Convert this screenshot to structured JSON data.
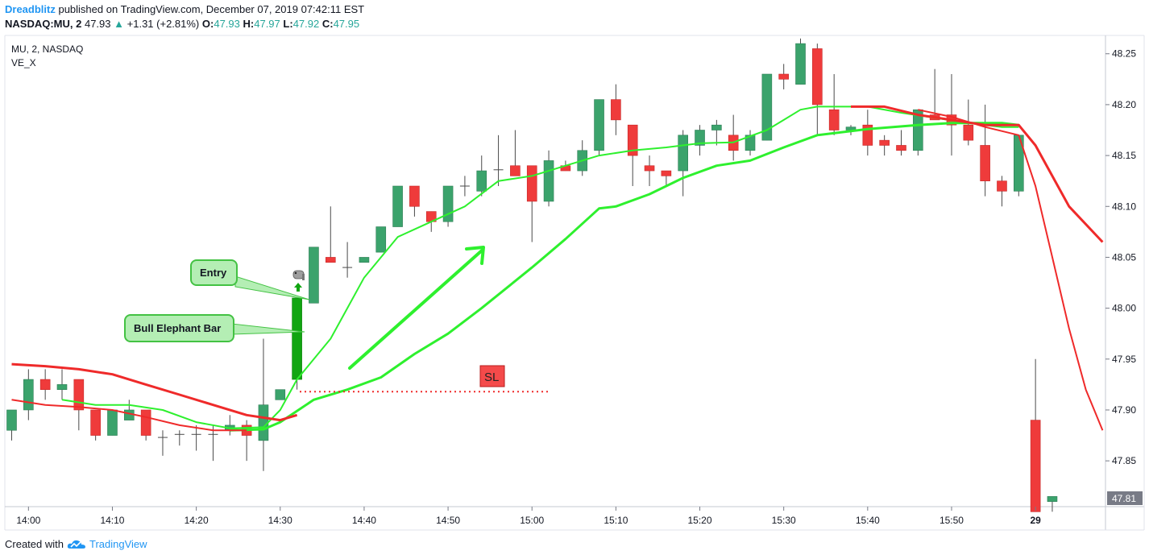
{
  "header": {
    "author": "Dreadblitz",
    "published_text": "published on TradingView.com, December 07, 2019 07:42:11 EST",
    "symbol": "NASDAQ:MU, 2",
    "last": "47.93",
    "change_arrow": "▲",
    "change": "+1.31 (+2.81%)",
    "o_label": "O:",
    "o_value": "47.93",
    "h_label": "H:",
    "h_value": "47.97",
    "l_label": "L:",
    "l_value": "47.92",
    "c_label": "C:",
    "c_value": "47.95"
  },
  "legend": {
    "symbol_line": "MU, 2, NASDAQ",
    "indicator": "VE_X"
  },
  "footer": {
    "created_with": "Created with",
    "brand": "TradingView",
    "logo_icon": "tradingview-cloud-icon"
  },
  "annotations": {
    "entry": "Entry",
    "bull_elephant_bar": "Bull Elephant Bar",
    "stop_loss": "SL",
    "elephant_icon": "elephant-icon"
  },
  "colors": {
    "bull": "#3ba36c",
    "bear": "#ef3b3b",
    "elephant_bar": "#11a511",
    "fast_ma": "#2ef02e",
    "slow_ma": "#ef2a2a",
    "callout_fill": "#b4eeb4",
    "callout_border": "#43c243",
    "sl_fill": "#f44a4a",
    "price_tag": "#787b86"
  },
  "chart_data": {
    "type": "candlestick",
    "x_tick_labels": [
      "14:00",
      "14:10",
      "14:20",
      "14:30",
      "14:40",
      "14:50",
      "15:00",
      "15:10",
      "15:20",
      "15:30",
      "15:40",
      "15:50",
      "29"
    ],
    "y_tick_labels": [
      "48.25",
      "48.20",
      "48.15",
      "48.10",
      "48.05",
      "48.00",
      "47.95",
      "47.90",
      "47.85"
    ],
    "ylim": [
      47.805,
      48.268
    ],
    "current_price_label": "47.81",
    "candles": [
      {
        "t": "13:58",
        "o": 47.88,
        "h": 47.9,
        "l": 47.87,
        "c": 47.9
      },
      {
        "t": "14:00",
        "o": 47.9,
        "h": 47.94,
        "l": 47.89,
        "c": 47.93
      },
      {
        "t": "14:02",
        "o": 47.93,
        "h": 47.94,
        "l": 47.91,
        "c": 47.92
      },
      {
        "t": "14:04",
        "o": 47.92,
        "h": 47.94,
        "l": 47.91,
        "c": 47.925
      },
      {
        "t": "14:06",
        "o": 47.93,
        "h": 47.93,
        "l": 47.88,
        "c": 47.9
      },
      {
        "t": "14:08",
        "o": 47.9,
        "h": 47.9,
        "l": 47.87,
        "c": 47.875
      },
      {
        "t": "14:10",
        "o": 47.875,
        "h": 47.9,
        "l": 47.875,
        "c": 47.9
      },
      {
        "t": "14:12",
        "o": 47.89,
        "h": 47.91,
        "l": 47.89,
        "c": 47.9
      },
      {
        "t": "14:14",
        "o": 47.9,
        "h": 47.9,
        "l": 47.87,
        "c": 47.875
      },
      {
        "t": "14:16",
        "o": 47.873,
        "h": 47.88,
        "l": 47.855,
        "c": 47.873
      },
      {
        "t": "14:18",
        "o": 47.876,
        "h": 47.88,
        "l": 47.865,
        "c": 47.876
      },
      {
        "t": "14:20",
        "o": 47.876,
        "h": 47.885,
        "l": 47.86,
        "c": 47.876
      },
      {
        "t": "14:22",
        "o": 47.876,
        "h": 47.885,
        "l": 47.85,
        "c": 47.876
      },
      {
        "t": "14:24",
        "o": 47.88,
        "h": 47.895,
        "l": 47.875,
        "c": 47.885
      },
      {
        "t": "14:26",
        "o": 47.885,
        "h": 47.89,
        "l": 47.85,
        "c": 47.875
      },
      {
        "t": "14:28",
        "o": 47.87,
        "h": 47.97,
        "l": 47.84,
        "c": 47.905
      },
      {
        "t": "14:30",
        "o": 47.91,
        "h": 47.92,
        "l": 47.91,
        "c": 47.92
      },
      {
        "t": "14:32",
        "o": 47.93,
        "h": 48.01,
        "l": 47.92,
        "c": 48.01,
        "elephant": true
      },
      {
        "t": "14:34",
        "o": 48.005,
        "h": 48.06,
        "l": 48.005,
        "c": 48.06
      },
      {
        "t": "14:36",
        "o": 48.05,
        "h": 48.1,
        "l": 48.045,
        "c": 48.045
      },
      {
        "t": "14:38",
        "o": 48.04,
        "h": 48.065,
        "l": 48.03,
        "c": 48.04
      },
      {
        "t": "14:40",
        "o": 48.045,
        "h": 48.05,
        "l": 48.045,
        "c": 48.05
      },
      {
        "t": "14:42",
        "o": 48.055,
        "h": 48.08,
        "l": 48.055,
        "c": 48.08
      },
      {
        "t": "14:44",
        "o": 48.08,
        "h": 48.12,
        "l": 48.08,
        "c": 48.12
      },
      {
        "t": "14:46",
        "o": 48.12,
        "h": 48.12,
        "l": 48.09,
        "c": 48.1
      },
      {
        "t": "14:48",
        "o": 48.095,
        "h": 48.095,
        "l": 48.075,
        "c": 48.085
      },
      {
        "t": "14:50",
        "o": 48.085,
        "h": 48.12,
        "l": 48.08,
        "c": 48.12
      },
      {
        "t": "14:52",
        "o": 48.12,
        "h": 48.13,
        "l": 48.11,
        "c": 48.12
      },
      {
        "t": "14:54",
        "o": 48.115,
        "h": 48.15,
        "l": 48.11,
        "c": 48.135
      },
      {
        "t": "14:56",
        "o": 48.136,
        "h": 48.17,
        "l": 48.12,
        "c": 48.136
      },
      {
        "t": "14:58",
        "o": 48.14,
        "h": 48.175,
        "l": 48.13,
        "c": 48.13
      },
      {
        "t": "15:00",
        "o": 48.14,
        "h": 48.14,
        "l": 48.065,
        "c": 48.105
      },
      {
        "t": "15:02",
        "o": 48.105,
        "h": 48.155,
        "l": 48.1,
        "c": 48.145
      },
      {
        "t": "15:04",
        "o": 48.14,
        "h": 48.145,
        "l": 48.135,
        "c": 48.135
      },
      {
        "t": "15:06",
        "o": 48.135,
        "h": 48.165,
        "l": 48.13,
        "c": 48.155
      },
      {
        "t": "15:08",
        "o": 48.155,
        "h": 48.205,
        "l": 48.15,
        "c": 48.205
      },
      {
        "t": "15:10",
        "o": 48.205,
        "h": 48.22,
        "l": 48.17,
        "c": 48.185
      },
      {
        "t": "15:12",
        "o": 48.18,
        "h": 48.18,
        "l": 48.12,
        "c": 48.15
      },
      {
        "t": "15:14",
        "o": 48.14,
        "h": 48.15,
        "l": 48.12,
        "c": 48.135
      },
      {
        "t": "15:16",
        "o": 48.135,
        "h": 48.135,
        "l": 48.12,
        "c": 48.13
      },
      {
        "t": "15:18",
        "o": 48.135,
        "h": 48.175,
        "l": 48.11,
        "c": 48.17
      },
      {
        "t": "15:20",
        "o": 48.16,
        "h": 48.18,
        "l": 48.15,
        "c": 48.175
      },
      {
        "t": "15:22",
        "o": 48.175,
        "h": 48.185,
        "l": 48.16,
        "c": 48.18
      },
      {
        "t": "15:24",
        "o": 48.17,
        "h": 48.19,
        "l": 48.145,
        "c": 48.155
      },
      {
        "t": "15:26",
        "o": 48.155,
        "h": 48.175,
        "l": 48.15,
        "c": 48.17
      },
      {
        "t": "15:28",
        "o": 48.165,
        "h": 48.23,
        "l": 48.165,
        "c": 48.23
      },
      {
        "t": "15:30",
        "o": 48.23,
        "h": 48.24,
        "l": 48.215,
        "c": 48.225
      },
      {
        "t": "15:32",
        "o": 48.22,
        "h": 48.265,
        "l": 48.22,
        "c": 48.26
      },
      {
        "t": "15:34",
        "o": 48.255,
        "h": 48.26,
        "l": 48.17,
        "c": 48.2
      },
      {
        "t": "15:36",
        "o": 48.195,
        "h": 48.23,
        "l": 48.17,
        "c": 48.175
      },
      {
        "t": "15:38",
        "o": 48.175,
        "h": 48.18,
        "l": 48.17,
        "c": 48.178
      },
      {
        "t": "15:40",
        "o": 48.18,
        "h": 48.195,
        "l": 48.15,
        "c": 48.16
      },
      {
        "t": "15:42",
        "o": 48.165,
        "h": 48.17,
        "l": 48.15,
        "c": 48.16
      },
      {
        "t": "15:44",
        "o": 48.16,
        "h": 48.175,
        "l": 48.15,
        "c": 48.155
      },
      {
        "t": "15:46",
        "o": 48.155,
        "h": 48.195,
        "l": 48.15,
        "c": 48.195
      },
      {
        "t": "15:48",
        "o": 48.19,
        "h": 48.235,
        "l": 48.185,
        "c": 48.185
      },
      {
        "t": "15:50",
        "o": 48.19,
        "h": 48.23,
        "l": 48.15,
        "c": 48.18
      },
      {
        "t": "15:52",
        "o": 48.18,
        "h": 48.205,
        "l": 48.16,
        "c": 48.165
      },
      {
        "t": "15:54",
        "o": 48.16,
        "h": 48.2,
        "l": 48.11,
        "c": 48.125
      },
      {
        "t": "15:56",
        "o": 48.125,
        "h": 48.13,
        "l": 48.1,
        "c": 48.115
      },
      {
        "t": "15:58",
        "o": 48.115,
        "h": 48.17,
        "l": 48.11,
        "c": 48.17
      },
      {
        "t": "29 04:00",
        "o": 47.89,
        "h": 47.95,
        "l": 47.8,
        "c": 47.8
      },
      {
        "t": "29 04:02",
        "o": 47.81,
        "h": 47.815,
        "l": 47.8,
        "c": 47.815
      }
    ],
    "series": [
      {
        "line_type": "fast_ma",
        "points": [
          [
            "14:04",
            47.91
          ],
          [
            "14:08",
            47.905
          ],
          [
            "14:12",
            47.905
          ],
          [
            "14:16",
            47.9
          ],
          [
            "14:20",
            47.888
          ],
          [
            "14:24",
            47.882
          ],
          [
            "14:28",
            47.883
          ],
          [
            "14:30",
            47.9
          ],
          [
            "14:32",
            47.93
          ],
          [
            "14:36",
            47.97
          ],
          [
            "14:40",
            48.03
          ],
          [
            "14:44",
            48.07
          ],
          [
            "14:48",
            48.085
          ],
          [
            "14:52",
            48.1
          ],
          [
            "14:56",
            48.125
          ],
          [
            "15:00",
            48.13
          ],
          [
            "15:04",
            48.14
          ],
          [
            "15:08",
            48.15
          ],
          [
            "15:12",
            48.155
          ],
          [
            "15:16",
            48.158
          ],
          [
            "15:20",
            48.162
          ],
          [
            "15:24",
            48.163
          ],
          [
            "15:28",
            48.175
          ],
          [
            "15:30",
            48.185
          ],
          [
            "15:32",
            48.195
          ],
          [
            "15:34",
            48.198
          ],
          [
            "15:40",
            48.198
          ],
          [
            "15:44",
            48.192
          ],
          [
            "15:48",
            48.187
          ],
          [
            "15:52",
            48.182
          ],
          [
            "15:56",
            48.178
          ],
          [
            "15:58",
            48.178
          ]
        ]
      },
      {
        "line_type": "fast_ma_lower",
        "points": [
          [
            "14:24",
            47.88
          ],
          [
            "14:28",
            47.881
          ],
          [
            "14:30",
            47.888
          ],
          [
            "14:34",
            47.91
          ],
          [
            "14:38",
            47.92
          ],
          [
            "14:42",
            47.932
          ],
          [
            "14:46",
            47.955
          ],
          [
            "14:50",
            47.975
          ],
          [
            "14:54",
            48.0
          ],
          [
            "15:00",
            48.04
          ],
          [
            "15:04",
            48.068
          ],
          [
            "15:08",
            48.098
          ],
          [
            "15:10",
            48.1
          ],
          [
            "15:14",
            48.112
          ],
          [
            "15:18",
            48.128
          ],
          [
            "15:22",
            48.14
          ],
          [
            "15:26",
            48.145
          ],
          [
            "15:30",
            48.158
          ],
          [
            "15:34",
            48.17
          ],
          [
            "15:40",
            48.176
          ],
          [
            "15:46",
            48.18
          ],
          [
            "15:50",
            48.182
          ],
          [
            "15:56",
            48.182
          ],
          [
            "15:58",
            48.18
          ]
        ]
      },
      {
        "line_type": "slow_ma",
        "points": [
          [
            "13:58",
            47.945
          ],
          [
            "14:02",
            47.943
          ],
          [
            "14:06",
            47.94
          ],
          [
            "14:10",
            47.935
          ],
          [
            "14:14",
            47.925
          ],
          [
            "14:18",
            47.915
          ],
          [
            "14:22",
            47.905
          ],
          [
            "14:26",
            47.895
          ],
          [
            "14:30",
            47.89
          ],
          [
            "14:32",
            47.895
          ]
        ]
      },
      {
        "line_type": "slow_ma_thin",
        "points": [
          [
            "13:58",
            47.91
          ],
          [
            "14:02",
            47.905
          ],
          [
            "14:06",
            47.903
          ],
          [
            "14:10",
            47.9
          ],
          [
            "14:14",
            47.893
          ],
          [
            "14:18",
            47.885
          ],
          [
            "14:22",
            47.88
          ],
          [
            "14:26",
            47.88
          ]
        ]
      },
      {
        "line_type": "slow_ma_right",
        "points": [
          [
            "15:38",
            48.198
          ],
          [
            "15:42",
            48.198
          ],
          [
            "15:46",
            48.19
          ],
          [
            "15:50",
            48.185
          ],
          [
            "15:54",
            48.18
          ],
          [
            "15:58",
            48.18
          ],
          [
            "29 04:00",
            48.16
          ],
          [
            "29 04:04",
            48.1
          ],
          [
            "29 04:08",
            48.065
          ]
        ]
      },
      {
        "line_type": "slow_ma_right_thin",
        "points": [
          [
            "15:46",
            48.195
          ],
          [
            "15:50",
            48.188
          ],
          [
            "15:54",
            48.178
          ],
          [
            "15:58",
            48.17
          ],
          [
            "29 04:00",
            48.12
          ],
          [
            "29 04:02",
            48.05
          ],
          [
            "29 04:04",
            47.98
          ],
          [
            "29 04:06",
            47.92
          ],
          [
            "29 04:08",
            47.88
          ]
        ]
      }
    ],
    "stop_loss_level": 47.918
  }
}
